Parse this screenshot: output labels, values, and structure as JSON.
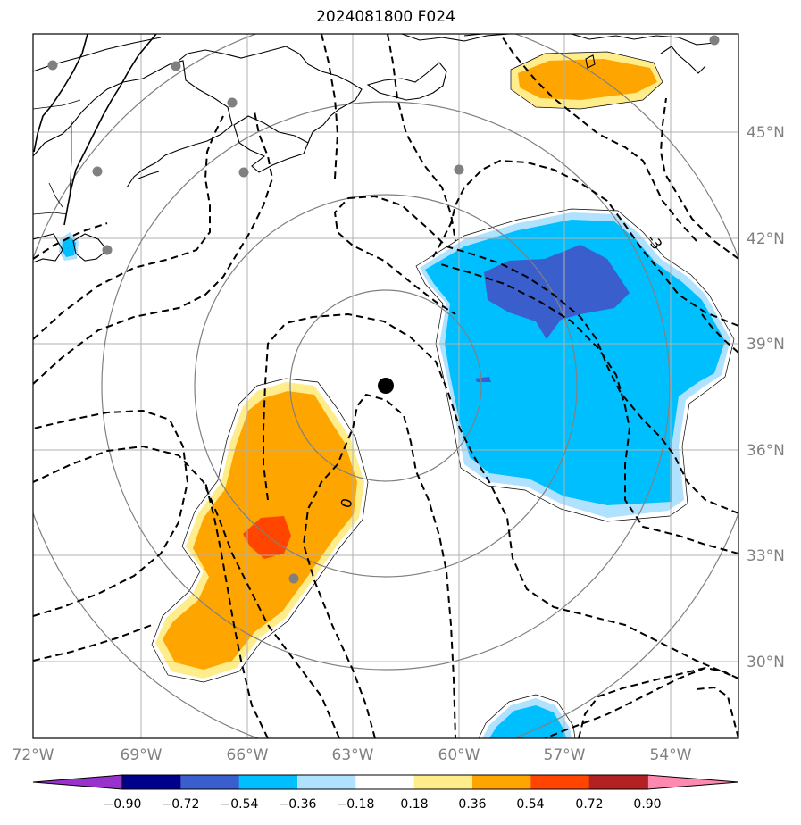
{
  "title": "2024081800 F024",
  "map": {
    "lon_ticks": [
      "72°W",
      "69°W",
      "66°W",
      "63°W",
      "60°W",
      "57°W",
      "54°W"
    ],
    "lat_ticks": [
      "45°N",
      "42°N",
      "39°N",
      "36°N",
      "33°N",
      "30°N"
    ],
    "contour_labels": [
      "0",
      "-3"
    ]
  },
  "colorbar": {
    "ticks": [
      "−0.90",
      "−0.72",
      "−0.54",
      "−0.36",
      "−0.18",
      "0.18",
      "0.36",
      "0.54",
      "0.72",
      "0.90"
    ],
    "colors": [
      "#9932cc",
      "#00008b",
      "#3a5fcd",
      "#00bfff",
      "#b0e2ff",
      "#ffffff",
      "#ffec8b",
      "#ffa500",
      "#ff4500",
      "#b22222",
      "#ff88b0"
    ]
  },
  "colors": {
    "orange": "#ffa500",
    "light_yellow": "#ffec8b",
    "red_orange": "#ff4500",
    "deep_sky_blue": "#00bfff",
    "light_blue": "#b0e2ff",
    "royal_blue": "#3a5fcd",
    "grid": "#b0b0b0",
    "range_rings": "#808080"
  }
}
